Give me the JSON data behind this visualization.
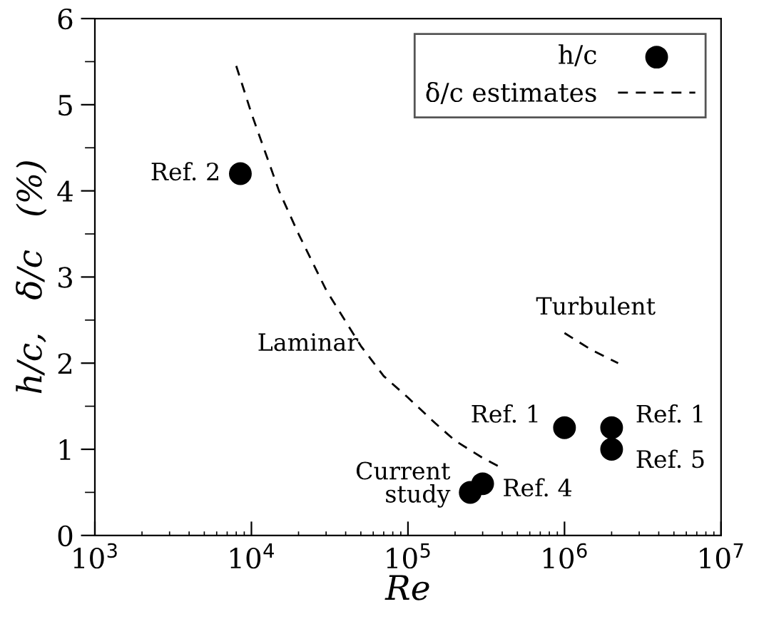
{
  "chart_data": {
    "type": "scatter",
    "xlabel": "Re",
    "ylabel": "h/c,   δ/c   (%)",
    "log": "x",
    "xlim": [
      1000,
      10000000
    ],
    "ylim": [
      0,
      6
    ],
    "xticks": [
      {
        "value": 1000,
        "label": "10$^{3}$"
      },
      {
        "value": 10000,
        "label": "10$^{4}$"
      },
      {
        "value": 100000,
        "label": "10$^{5}$"
      },
      {
        "value": 1000000,
        "label": "10$^{6}$"
      },
      {
        "value": 10000000,
        "label": "10$^{7}$"
      }
    ],
    "yticks": [
      0,
      {
        "value": 0.5,
        "label": null
      },
      1,
      {
        "value": 1.5,
        "label": null
      },
      2,
      {
        "value": 2.5,
        "label": null
      },
      3,
      {
        "value": 3.5,
        "label": null
      },
      4,
      {
        "value": 4.5,
        "label": null
      },
      5,
      {
        "value": 5.5,
        "label": null
      },
      6
    ],
    "grid": false,
    "legend": "top right",
    "series": [
      {
        "name": "h/c",
        "color": "#000000",
        "marker": "circle",
        "x": [
          8500,
          1000000,
          2000000,
          2000000,
          250000,
          300000
        ],
        "values": [
          4.2,
          1.25,
          1.25,
          1.0,
          0.5,
          0.6
        ]
      },
      {
        "name": "δ/c estimates",
        "type": "line",
        "color": "#000000",
        "line_style": "dashed",
        "marker": "none",
        "x": [
          8000,
          10000,
          15000,
          20000,
          30000,
          50000,
          70000,
          100000,
          150000,
          200000,
          300000,
          400000,
          700000,
          1000000,
          1500000,
          2200000
        ],
        "values": [
          5.45,
          4.9,
          4.0,
          3.5,
          2.85,
          2.2,
          1.85,
          1.6,
          1.3,
          1.1,
          0.9,
          0.78,
          null,
          2.35,
          2.15,
          2.0
        ]
      }
    ],
    "annotations": [
      {
        "text": "Ref. 2",
        "x": 8500,
        "y": 4.2
      },
      {
        "text": "Ref. 1",
        "x": 1000000,
        "y": 1.25
      },
      {
        "text": "Ref. 1",
        "x": 2000000,
        "y": 1.25
      },
      {
        "text": "Ref. 5",
        "x": 2000000,
        "y": 1.0
      },
      {
        "text": "Current\nstudy",
        "x": 250000,
        "y": 0.5
      },
      {
        "text": "Ref. 4",
        "x": 300000,
        "y": 0.6
      },
      "Laminar",
      "Turbulent"
    ]
  }
}
